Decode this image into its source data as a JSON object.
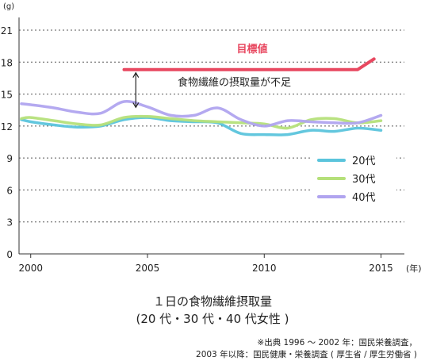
{
  "chart_data": {
    "type": "line",
    "y_unit": "(g)",
    "x_unit": "(年)",
    "ylim": [
      0,
      21
    ],
    "yticks": [
      "0",
      "3",
      "6",
      "9",
      "12",
      "15",
      "18",
      "21"
    ],
    "xlim": [
      1999.5,
      2016
    ],
    "xticks": [
      "2000",
      "2005",
      "2010",
      "2015"
    ],
    "grid": true,
    "legend_position": "right-middle",
    "series": [
      {
        "name": "20代",
        "color": "#5bc4dc",
        "x": [
          1999.6,
          2000,
          2001,
          2002,
          2003,
          2004,
          2005,
          2006,
          2007,
          2008,
          2009,
          2010,
          2011,
          2012,
          2013,
          2014,
          2015
        ],
        "y": [
          12.6,
          12.4,
          12.1,
          11.9,
          12.0,
          12.6,
          12.8,
          12.5,
          12.4,
          12.3,
          11.3,
          11.2,
          11.2,
          11.6,
          11.5,
          11.8,
          11.6
        ]
      },
      {
        "name": "30代",
        "color": "#b5e07a",
        "x": [
          1999.6,
          2000,
          2001,
          2002,
          2003,
          2004,
          2005,
          2006,
          2007,
          2008,
          2009,
          2010,
          2011,
          2012,
          2013,
          2014,
          2015
        ],
        "y": [
          12.7,
          12.8,
          12.5,
          12.2,
          12.1,
          12.8,
          12.9,
          12.7,
          12.5,
          12.4,
          12.3,
          12.2,
          11.8,
          12.6,
          12.7,
          12.3,
          12.5
        ]
      },
      {
        "name": "40代",
        "color": "#b0a4ef",
        "x": [
          1999.6,
          2000,
          2001,
          2002,
          2003,
          2004,
          2005,
          2006,
          2007,
          2008,
          2009,
          2010,
          2011,
          2012,
          2013,
          2014,
          2015
        ],
        "y": [
          14.1,
          14.0,
          13.7,
          13.3,
          13.2,
          14.3,
          13.8,
          13.0,
          13.0,
          13.7,
          12.6,
          12.0,
          12.5,
          12.4,
          12.3,
          12.3,
          13.0
        ]
      }
    ],
    "target": {
      "label": "目標値",
      "color": "#e84860",
      "x": [
        2004,
        2014,
        2014.7
      ],
      "y": [
        17.3,
        17.3,
        18.3
      ]
    },
    "gap_annotation": {
      "text": "食物繊維の摂取量が不足",
      "x": 2004.5,
      "y_from": 17.3,
      "y_to": 13.6
    }
  },
  "caption": {
    "line1": "１日の食物繊維摂取量",
    "line2": "(20 代・30 代・40 代女性 )"
  },
  "source": {
    "line1": "※出典 1996 〜 2002 年：国民栄養調査，",
    "line2": "2003 年以降：国民健康・栄養調査 ( 厚生省 / 厚生労働省 )"
  }
}
